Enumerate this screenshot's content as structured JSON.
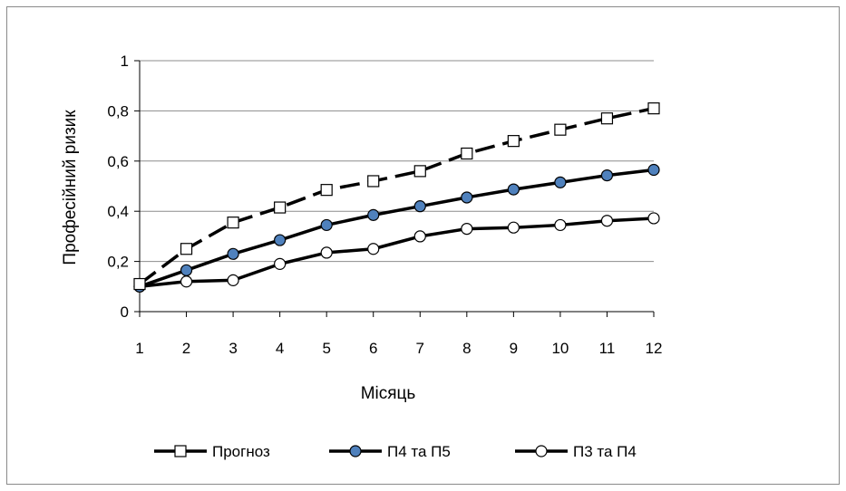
{
  "chart_data": {
    "type": "line",
    "title": "",
    "xlabel": "Місяць",
    "ylabel": "Професійний ризик",
    "x": [
      1,
      2,
      3,
      4,
      5,
      6,
      7,
      8,
      9,
      10,
      11,
      12
    ],
    "xticks": [
      "1",
      "2",
      "3",
      "4",
      "5",
      "6",
      "7",
      "8",
      "9",
      "10",
      "11",
      "12"
    ],
    "ylim": [
      0,
      1
    ],
    "yticks": [
      "0",
      "0,2",
      "0,4",
      "0,6",
      "0,8",
      "1"
    ],
    "yticks_values": [
      0,
      0.2,
      0.4,
      0.6,
      0.8,
      1
    ],
    "grid": "horizontal",
    "legend_position": "bottom",
    "series": [
      {
        "name": "Прогноз",
        "marker": "square-open",
        "line": "dashed",
        "values": [
          0.11,
          0.25,
          0.355,
          0.415,
          0.485,
          0.52,
          0.56,
          0.63,
          0.68,
          0.725,
          0.77,
          0.81
        ]
      },
      {
        "name": "П4 та П5",
        "marker": "circle-filled",
        "line": "solid",
        "marker_color": "#4f81bd",
        "values": [
          0.1,
          0.165,
          0.23,
          0.285,
          0.345,
          0.385,
          0.42,
          0.455,
          0.487,
          0.515,
          0.543,
          0.565
        ]
      },
      {
        "name": "П3 та П4",
        "marker": "circle-open",
        "line": "solid",
        "values": [
          0.1,
          0.12,
          0.125,
          0.19,
          0.235,
          0.25,
          0.3,
          0.33,
          0.335,
          0.345,
          0.362,
          0.372
        ]
      }
    ]
  }
}
